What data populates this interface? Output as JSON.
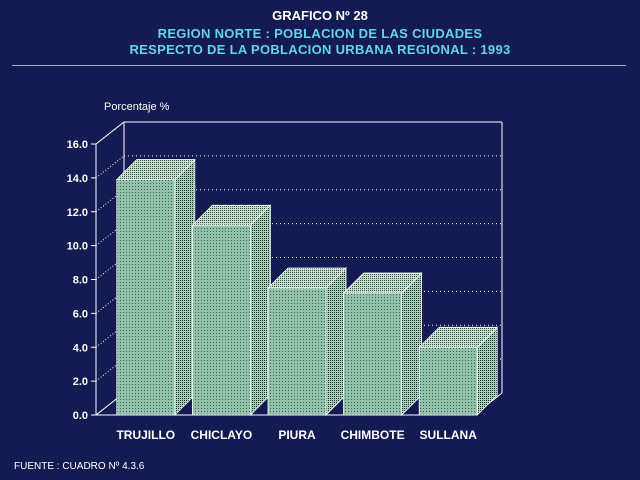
{
  "header": {
    "title": "GRAFICO Nº 28",
    "subtitle1": "REGION NORTE : POBLACION DE LAS CIUDADES",
    "subtitle2": "RESPECTO DE LA POBLACION URBANA REGIONAL : 1993"
  },
  "footer": {
    "source": "FUENTE : CUADRO Nº 4.3.6"
  },
  "colors": {
    "background": "#141a52",
    "bar_front": "#8fc2a8",
    "bar_side": "#58806e",
    "bar_top": "#b5d8c4",
    "text": "#ffffff",
    "subtitle": "#62d4ee"
  },
  "chart_data": {
    "type": "bar",
    "categories": [
      "TRUJILLO",
      "CHICLAYO",
      "PIURA",
      "CHIMBOTE",
      "SULLANA"
    ],
    "values": [
      13.9,
      11.2,
      7.5,
      7.2,
      4.0
    ],
    "ylabel": "Porcentaje %",
    "yticks": [
      "0.0",
      "2.0",
      "4.0",
      "6.0",
      "8.0",
      "10.0",
      "12.0",
      "14.0",
      "16.0"
    ],
    "ylim": [
      0,
      16
    ],
    "grid": true,
    "style": "3d"
  }
}
